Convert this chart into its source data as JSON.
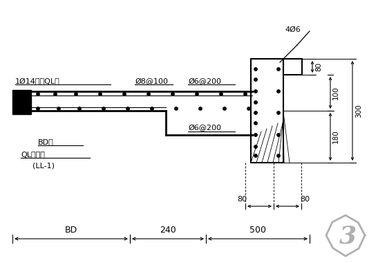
{
  "bg_color": "#ffffff",
  "line_color": "#000000",
  "gray_color": "#b0b0b0",
  "labels": {
    "anchor_steel": "1Ø14锄入QL内",
    "stirrup1": "Ø8@100",
    "stirrup2": "Ø6@200",
    "stirrup3": "Ø6@200",
    "top_steel": "4Ø6",
    "bd_bar": "BD筋",
    "ql_label": "QL冈过梁",
    "ll_label": "(LL-1)",
    "bd_label": "BD",
    "dim_240": "240",
    "dim_500": "500",
    "dim_80a": "80",
    "dim_80b": "80",
    "dim_80c": "80",
    "dim_100": "100",
    "dim_180": "180",
    "dim_300": "300",
    "num_label": "3"
  }
}
